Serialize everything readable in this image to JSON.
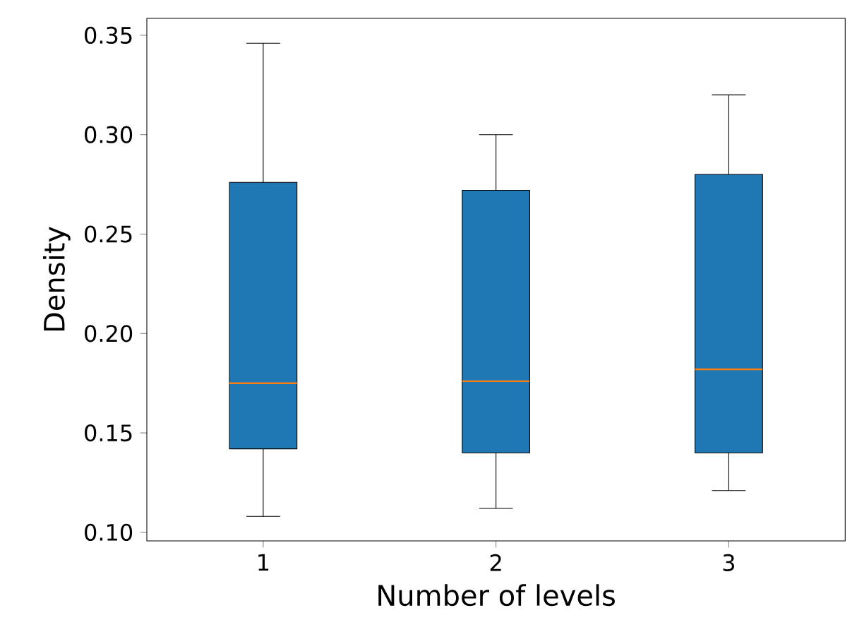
{
  "chart_data": {
    "type": "box",
    "xlabel": "Number of levels",
    "ylabel": "Density",
    "categories": [
      "1",
      "2",
      "3"
    ],
    "series": [
      {
        "color": "#1f77b4",
        "boxes": [
          {
            "low": 0.108,
            "q1": 0.142,
            "median": 0.175,
            "q3": 0.276,
            "high": 0.346
          },
          {
            "low": 0.112,
            "q1": 0.14,
            "median": 0.176,
            "q3": 0.272,
            "high": 0.3
          },
          {
            "low": 0.121,
            "q1": 0.14,
            "median": 0.182,
            "q3": 0.28,
            "high": 0.32
          }
        ]
      }
    ],
    "ylim": [
      0.0957,
      0.3585
    ],
    "yticks": [
      {
        "value": 0.1,
        "label": "0.10"
      },
      0.15,
      {
        "value": 0.2,
        "label": "0.20"
      },
      0.25,
      {
        "value": 0.3,
        "label": "0.30"
      },
      0.35
    ],
    "grid": false
  }
}
